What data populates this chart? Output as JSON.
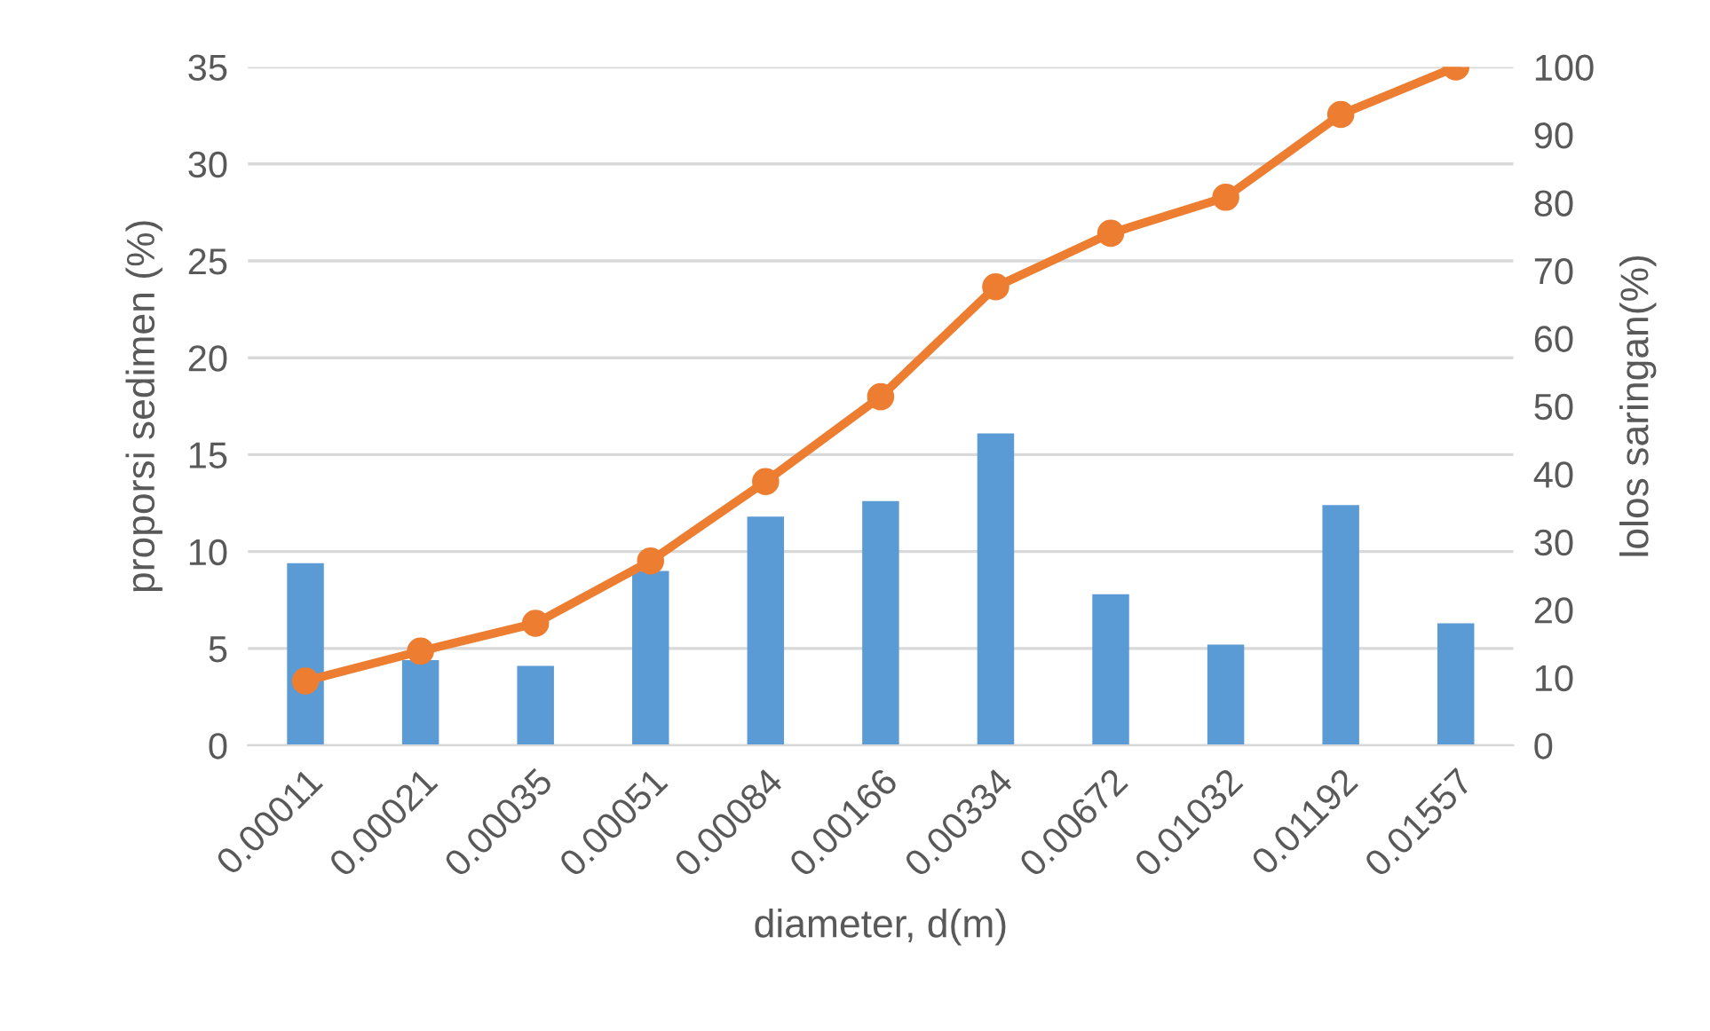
{
  "chart_data": {
    "type": "bar",
    "xlabel": "diameter, d(m)",
    "ylabel": "proporsi sedimen (%)",
    "y2label": "lolos saringan(%)",
    "categories": [
      "0.00011",
      "0.00021",
      "0.00035",
      "0.00051",
      "0.00084",
      "0.00166",
      "0.00334",
      "0.00672",
      "0.01032",
      "0.01192",
      "0.01557"
    ],
    "series": [
      {
        "color": "#5b9bd5",
        "values": [
          9.4,
          4.4,
          4.1,
          9.0,
          11.8,
          12.6,
          16.1,
          7.8,
          5.2,
          12.4,
          6.3
        ]
      },
      {
        "type": "line",
        "axis": "y2",
        "color": "#ed7d31",
        "marker": "circle",
        "values": [
          9.5,
          13.9,
          18.0,
          27.2,
          38.9,
          51.4,
          67.6,
          75.5,
          80.8,
          93.0,
          100
        ]
      }
    ],
    "ylim": [
      0,
      35
    ],
    "yticks": [
      0,
      5,
      10,
      15,
      20,
      25,
      30,
      35
    ],
    "y2lim": [
      0,
      100
    ],
    "y2ticks": [
      0,
      10,
      20,
      30,
      40,
      50,
      60,
      70,
      80,
      90,
      100
    ],
    "grid": "y",
    "legend": false
  }
}
